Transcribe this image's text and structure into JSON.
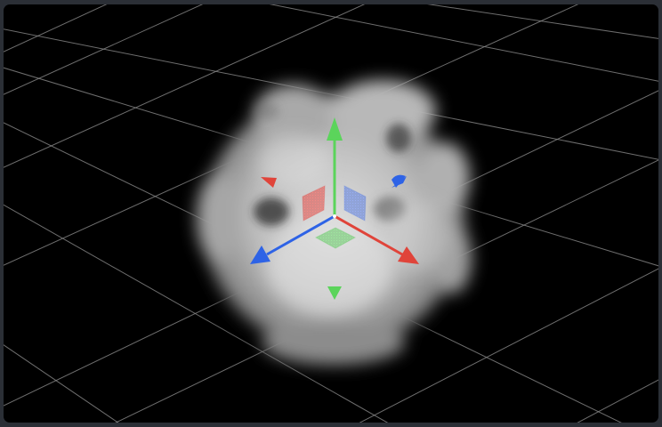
{
  "viewport": {
    "background_color": "#000000",
    "frame_color": "#2b2f36",
    "grid_color": "#8a8a8a"
  },
  "object": {
    "kind": "volumetric-cloud",
    "color": "#d9d9d9"
  },
  "gizmo": {
    "type": "transform-translate",
    "axes": [
      {
        "name": "x-axis",
        "color": "#e0443a"
      },
      {
        "name": "y-axis",
        "color": "#5bd45b"
      },
      {
        "name": "z-axis",
        "color": "#2e63e6"
      }
    ],
    "plane_handles": [
      {
        "name": "xy-plane",
        "color": "#e04a45"
      },
      {
        "name": "yz-plane",
        "color": "#5b7dde"
      },
      {
        "name": "xz-plane",
        "color": "#58c858"
      }
    ]
  }
}
